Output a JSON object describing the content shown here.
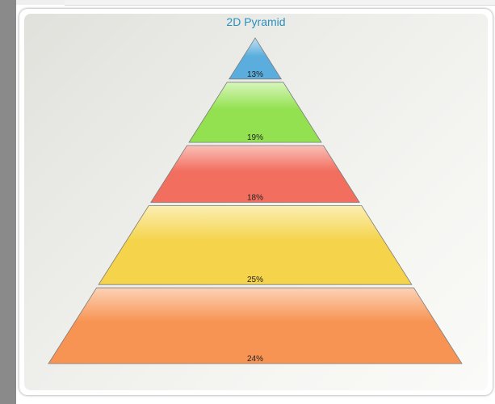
{
  "chart_data": {
    "type": "pyramid",
    "title": "2D Pyramid",
    "values": [
      13,
      19,
      18,
      25,
      24
    ],
    "labels": [
      "13%",
      "19%",
      "18%",
      "25%",
      "24%"
    ],
    "colors": [
      "#5aaddd",
      "#93e150",
      "#f26e5f",
      "#f5d34a",
      "#f79453"
    ],
    "highlight_colors": [
      "#c2e1f3",
      "#d8f6bd",
      "#f9c0b7",
      "#fbefb3",
      "#fcd2b6"
    ],
    "legend": "none",
    "grid": false
  }
}
